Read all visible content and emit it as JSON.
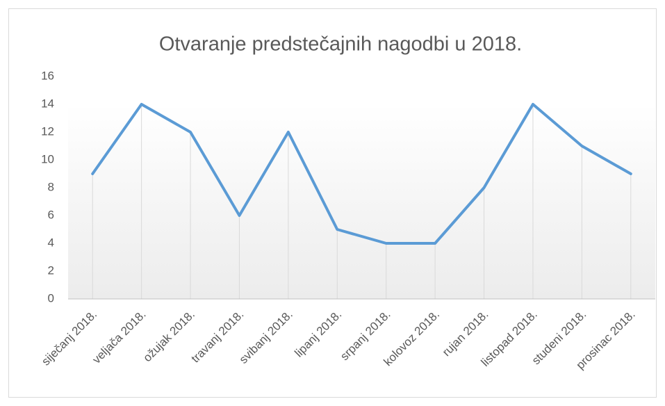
{
  "chart_data": {
    "type": "line",
    "title": "Otvaranje  predstečajnih  nagodbi  u  2018.",
    "categories": [
      "siječanj 2018.",
      "veljača 2018.",
      "ožujak 2018.",
      "travanj 2018.",
      "svibanj 2018.",
      "lipanj 2018.",
      "srpanj 2018.",
      "kolovoz 2018.",
      "rujan 2018.",
      "listopad 2018.",
      "studeni 2018.",
      "prosinac 2018."
    ],
    "values": [
      9,
      14,
      12,
      6,
      12,
      5,
      4,
      4,
      8,
      14,
      11,
      9
    ],
    "color": "#5b9bd5",
    "ylim": [
      0,
      16
    ],
    "yticks": [
      0,
      2,
      4,
      6,
      8,
      10,
      12,
      14,
      16
    ],
    "drop_lines": true
  }
}
